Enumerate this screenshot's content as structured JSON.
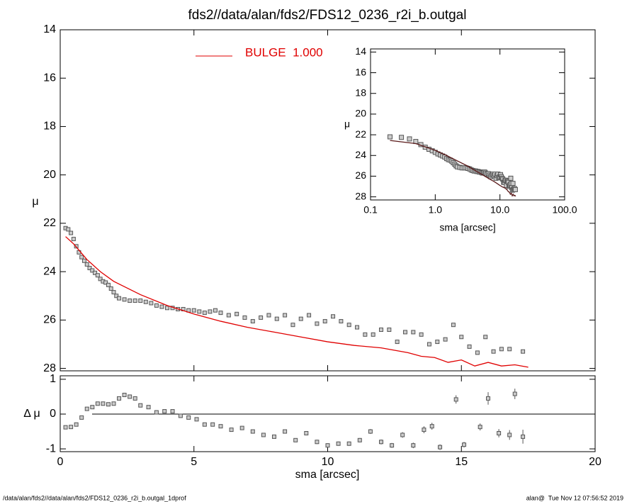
{
  "chart_data": [
    {
      "type": "scatter",
      "title": "fds2//data/alan/fds2/FDS12_0236_r2i_b.outgal",
      "ylabel": "μ",
      "xlim": [
        0,
        20
      ],
      "ylim": [
        28.1,
        14
      ],
      "yticks": [
        14,
        16,
        18,
        20,
        22,
        24,
        26,
        28
      ],
      "series": [
        {
          "color": "#555555",
          "x": [
            0.2,
            0.3,
            0.4,
            0.5,
            0.6,
            0.7,
            0.8,
            0.9,
            1.0,
            1.1,
            1.2,
            1.3,
            1.4,
            1.5,
            1.6,
            1.7,
            1.8,
            1.9,
            2.0,
            2.1,
            2.2,
            2.4,
            2.6,
            2.8,
            3.0,
            3.2,
            3.4,
            3.6,
            3.8,
            4.0,
            4.2,
            4.4,
            4.6,
            4.8,
            5.0,
            5.2,
            5.4,
            5.6,
            5.8,
            6.0,
            6.3,
            6.6,
            6.9,
            7.2,
            7.5,
            7.8,
            8.1,
            8.4,
            8.7,
            9.0,
            9.3,
            9.6,
            9.9,
            10.2,
            10.5,
            10.8,
            11.1,
            11.4,
            11.7,
            12.0,
            12.3,
            12.6,
            12.9,
            13.2,
            13.5,
            13.8,
            14.1,
            14.4,
            14.7,
            15.0,
            15.3,
            15.6,
            15.9,
            16.2,
            16.5,
            16.8,
            17.3
          ],
          "values": [
            22.2,
            22.25,
            22.4,
            22.65,
            22.95,
            23.2,
            23.4,
            23.55,
            23.7,
            23.85,
            23.95,
            24.05,
            24.15,
            24.3,
            24.4,
            24.45,
            24.55,
            24.7,
            24.85,
            25.0,
            25.1,
            25.15,
            25.2,
            25.2,
            25.2,
            25.25,
            25.3,
            25.4,
            25.45,
            25.5,
            25.5,
            25.55,
            25.55,
            25.6,
            25.6,
            25.65,
            25.7,
            25.65,
            25.6,
            25.7,
            25.8,
            25.75,
            25.9,
            26.05,
            25.9,
            25.8,
            25.95,
            25.8,
            26.2,
            25.95,
            25.8,
            26.15,
            26.05,
            25.85,
            26.05,
            26.2,
            26.3,
            26.6,
            26.6,
            26.4,
            26.4,
            26.9,
            26.5,
            26.5,
            26.6,
            27.0,
            26.9,
            26.8,
            26.2,
            26.7,
            27.1,
            27.35,
            26.7,
            27.3,
            27.2,
            27.2,
            27.3
          ]
        },
        {
          "type": "line",
          "name": "BULGE  1.000",
          "color": "#e00000",
          "x": [
            0.2,
            0.5,
            1,
            1.5,
            2,
            3,
            4,
            5,
            6,
            7,
            8,
            9,
            10,
            11,
            12,
            12.5,
            13,
            13.5,
            14,
            14.5,
            15,
            15.5,
            16,
            16.5,
            17,
            17.5
          ],
          "values": [
            22.55,
            22.85,
            23.5,
            24.0,
            24.4,
            24.95,
            25.4,
            25.75,
            26.05,
            26.3,
            26.5,
            26.7,
            26.9,
            27.05,
            27.15,
            27.25,
            27.35,
            27.5,
            27.55,
            27.75,
            27.65,
            27.9,
            27.75,
            27.9,
            27.85,
            27.95
          ]
        }
      ]
    },
    {
      "type": "errorbar",
      "xlabel": "sma [arcsec]",
      "ylabel": "Δ μ",
      "color": "#555555",
      "xlim": [
        0,
        20
      ],
      "xticks": [
        0,
        5,
        10,
        15,
        20
      ],
      "ylim": [
        -1.08,
        1.1
      ],
      "yticks": [
        -1,
        0,
        1
      ],
      "x": [
        0.2,
        0.4,
        0.6,
        0.8,
        1.0,
        1.2,
        1.4,
        1.6,
        1.8,
        2.0,
        2.2,
        2.4,
        2.6,
        2.8,
        3.0,
        3.3,
        3.6,
        3.9,
        4.2,
        4.5,
        4.8,
        5.1,
        5.4,
        5.7,
        6.0,
        6.4,
        6.8,
        7.2,
        7.6,
        8.0,
        8.4,
        8.8,
        9.2,
        9.6,
        10.0,
        10.4,
        10.8,
        11.2,
        11.6,
        12.0,
        12.4,
        12.8,
        13.2,
        13.6,
        13.9,
        14.2,
        14.8,
        15.1,
        15.7,
        16.0,
        16.4,
        16.8,
        17.0,
        17.3
      ],
      "values": [
        -0.38,
        -0.37,
        -0.3,
        -0.1,
        0.15,
        0.2,
        0.3,
        0.3,
        0.28,
        0.3,
        0.45,
        0.55,
        0.5,
        0.45,
        0.25,
        0.2,
        0.05,
        0.08,
        0.08,
        -0.05,
        -0.1,
        -0.15,
        -0.3,
        -0.3,
        -0.35,
        -0.45,
        -0.4,
        -0.5,
        -0.6,
        -0.65,
        -0.5,
        -0.75,
        -0.55,
        -0.8,
        -0.9,
        -0.85,
        -0.85,
        -0.75,
        -0.5,
        -0.8,
        -0.9,
        -0.6,
        -0.9,
        -0.45,
        -0.35,
        -0.95,
        0.42,
        -0.88,
        -0.37,
        0.45,
        -0.55,
        -0.6,
        0.58,
        -0.65
      ],
      "errors": [
        0.02,
        0.02,
        0.02,
        0.02,
        0.02,
        0.02,
        0.02,
        0.02,
        0.02,
        0.02,
        0.02,
        0.03,
        0.03,
        0.03,
        0.03,
        0.03,
        0.03,
        0.03,
        0.03,
        0.03,
        0.04,
        0.04,
        0.04,
        0.04,
        0.04,
        0.04,
        0.04,
        0.05,
        0.05,
        0.05,
        0.05,
        0.05,
        0.05,
        0.06,
        0.06,
        0.06,
        0.06,
        0.06,
        0.07,
        0.07,
        0.07,
        0.08,
        0.08,
        0.1,
        0.1,
        0.08,
        0.12,
        0.08,
        0.1,
        0.18,
        0.12,
        0.14,
        0.15,
        0.2
      ]
    },
    {
      "type": "scatter",
      "xlabel": "sma [arcsec]",
      "ylabel": "μ",
      "xlog": true,
      "xlim": [
        0.1,
        100
      ],
      "xticks": [
        0.1,
        {
          "value": 1,
          "label": "1.0"
        },
        {
          "value": 10,
          "label": "10.0"
        },
        {
          "value": 100,
          "label": "100.0"
        }
      ],
      "ylim": [
        28.3,
        13.7
      ],
      "yticks": [
        14,
        16,
        18,
        20,
        22,
        24,
        26,
        28
      ],
      "series": [
        {
          "color": "#555555",
          "x": [
            0.2,
            0.3,
            0.4,
            0.5,
            0.6,
            0.7,
            0.8,
            0.9,
            1.0,
            1.1,
            1.2,
            1.3,
            1.4,
            1.5,
            1.6,
            1.7,
            1.8,
            1.9,
            2.0,
            2.1,
            2.2,
            2.4,
            2.6,
            2.8,
            3.0,
            3.2,
            3.4,
            3.6,
            3.8,
            4.0,
            4.2,
            4.4,
            4.6,
            4.8,
            5.0,
            5.2,
            5.4,
            5.6,
            5.8,
            6.0,
            6.3,
            6.6,
            6.9,
            7.2,
            7.5,
            7.8,
            8.1,
            8.4,
            8.7,
            9.0,
            9.3,
            9.6,
            9.9,
            10.2,
            10.5,
            10.8,
            11.1,
            11.4,
            11.7,
            12.0,
            12.3,
            12.6,
            12.9,
            13.2,
            13.5,
            13.8,
            14.1,
            14.4,
            14.7,
            15.0,
            15.3,
            15.6,
            15.9,
            16.2,
            16.5,
            16.8,
            17.3
          ],
          "values": [
            22.2,
            22.25,
            22.4,
            22.65,
            22.95,
            23.2,
            23.4,
            23.55,
            23.7,
            23.85,
            23.95,
            24.05,
            24.15,
            24.3,
            24.4,
            24.45,
            24.55,
            24.7,
            24.85,
            25.0,
            25.1,
            25.15,
            25.2,
            25.2,
            25.2,
            25.25,
            25.3,
            25.4,
            25.45,
            25.5,
            25.5,
            25.55,
            25.55,
            25.6,
            25.6,
            25.65,
            25.7,
            25.65,
            25.6,
            25.7,
            25.8,
            25.75,
            25.9,
            26.05,
            25.9,
            25.8,
            25.95,
            25.8,
            26.2,
            25.95,
            25.8,
            26.15,
            26.05,
            25.85,
            26.05,
            26.2,
            26.3,
            26.6,
            26.6,
            26.4,
            26.4,
            26.9,
            26.5,
            26.5,
            26.6,
            27.0,
            26.9,
            26.8,
            26.2,
            26.7,
            27.1,
            27.35,
            26.7,
            27.3,
            27.2,
            27.2,
            27.3
          ]
        },
        {
          "type": "line",
          "color": "#5a1a1a",
          "x": [
            0.2,
            0.5,
            1,
            1.5,
            2,
            3,
            4,
            5,
            6,
            7,
            8,
            9,
            10,
            11,
            12,
            12.5,
            13,
            13.5,
            14,
            14.5,
            15,
            15.5,
            16,
            16.5,
            17,
            17.5
          ],
          "values": [
            22.55,
            22.85,
            23.5,
            24.0,
            24.4,
            24.95,
            25.4,
            25.75,
            26.05,
            26.3,
            26.5,
            26.7,
            26.9,
            27.05,
            27.15,
            27.25,
            27.35,
            27.5,
            27.55,
            27.75,
            27.65,
            27.9,
            27.75,
            27.9,
            27.85,
            27.95
          ]
        }
      ]
    }
  ],
  "footer": {
    "left": "/data/alan/fds2//data/alan/fds2/FDS12_0236_r2i_b.outgal_1dprof",
    "right": "alan@  Tue Nov 12 07:56:52 2019"
  }
}
